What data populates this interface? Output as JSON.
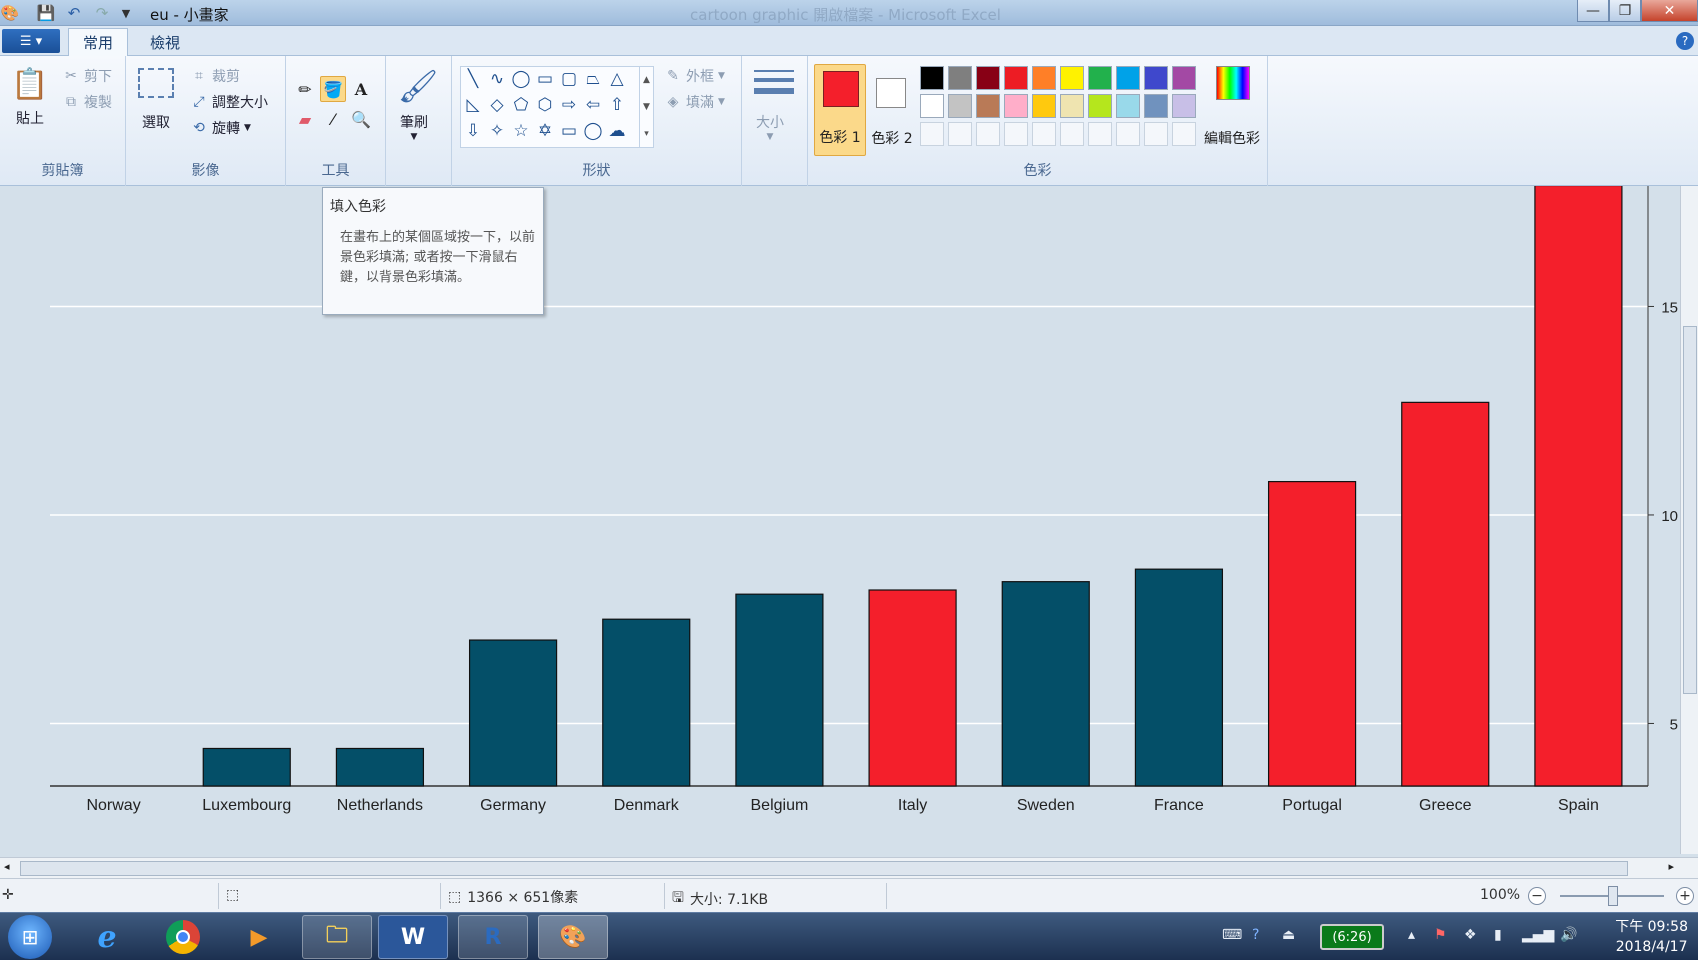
{
  "titlebar": {
    "title": "eu - 小畫家",
    "dimmed": "cartoon graphic 開啟檔案 - Microsoft Excel"
  },
  "tabs": {
    "home": "常用",
    "view": "檢視"
  },
  "clipboard": {
    "paste": "貼上",
    "cut": "剪下",
    "copy": "複製",
    "label": "剪貼簿"
  },
  "image": {
    "select": "選取",
    "crop": "裁剪",
    "resize": "調整大小",
    "rotate": "旋轉",
    "label": "影像"
  },
  "tools": {
    "label": "工具"
  },
  "brushes": {
    "label": "筆刷"
  },
  "shapes": {
    "outline": "外框",
    "fill": "填滿",
    "label": "形狀"
  },
  "size": {
    "label": "大小"
  },
  "colors": {
    "color1": "色彩 1",
    "color2": "色彩 2",
    "edit": "編輯色彩",
    "label": "色彩",
    "palette_row1": [
      "#000000",
      "#7f7f7f",
      "#880015",
      "#ed1c24",
      "#ff7f27",
      "#fff200",
      "#22b14c",
      "#00a2e8",
      "#3f48cc",
      "#a349a4"
    ],
    "palette_row2": [
      "#ffffff",
      "#c3c3c3",
      "#b97a57",
      "#ffaec9",
      "#ffc90e",
      "#efe4b0",
      "#b5e61d",
      "#99d9ea",
      "#7092be",
      "#c8bfe7"
    ],
    "primary": "#f41f2b",
    "secondary": "#ffffff"
  },
  "tooltip": {
    "title": "填入色彩",
    "body": "在畫布上的某個區域按一下，以前景色彩填滿; 或者按一下滑鼠右鍵，以背景色彩填滿。"
  },
  "chart_data": {
    "type": "bar",
    "categories": [
      "Norway",
      "Luxembourg",
      "Netherlands",
      "Germany",
      "Denmark",
      "Belgium",
      "Italy",
      "Sweden",
      "France",
      "Portugal",
      "Greece",
      "Spain"
    ],
    "values": [
      3.5,
      4.4,
      4.4,
      7.0,
      7.5,
      8.1,
      8.2,
      8.4,
      8.7,
      10.8,
      12.7,
      17.9
    ],
    "colors": [
      "#044f68",
      "#044f68",
      "#044f68",
      "#044f68",
      "#044f68",
      "#044f68",
      "#f41f2b",
      "#044f68",
      "#044f68",
      "#f41f2b",
      "#f41f2b",
      "#f41f2b"
    ],
    "yticks": [
      5,
      10,
      15
    ],
    "ylim": [
      3.5,
      17.9
    ],
    "yaxis_side": "right",
    "grid": true,
    "title": "",
    "xlabel": "",
    "ylabel": ""
  },
  "status": {
    "dimensions": "1366 × 651像素",
    "size": "大小: 7.1KB",
    "zoom": "100%"
  },
  "taskbar": {
    "battery": "(6:26)",
    "time": "下午 09:58",
    "date": "2018/4/17"
  }
}
